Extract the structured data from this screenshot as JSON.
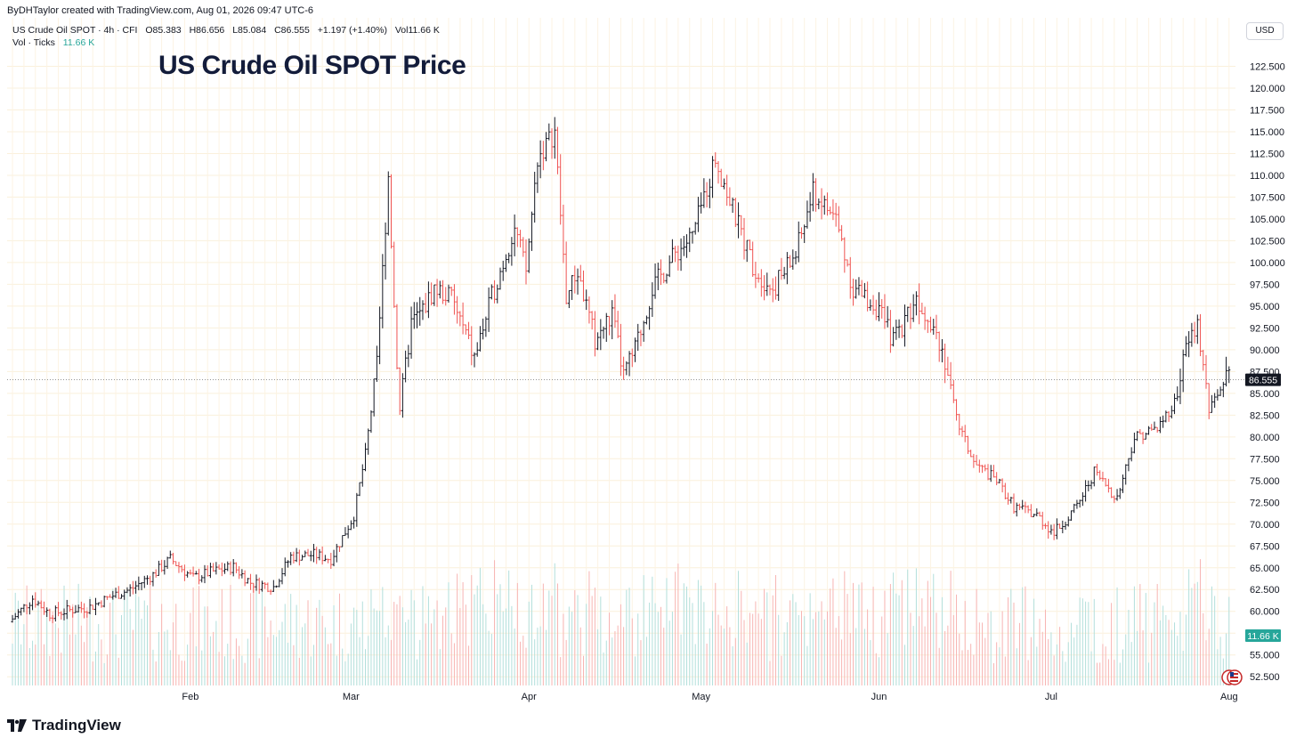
{
  "header": {
    "attribution": "ByDHTaylor created with TradingView.com, Aug 01, 2026 09:47 UTC-6"
  },
  "legend": {
    "symbol": "US Crude Oil SPOT · 4h · CFI",
    "open": "O85.383",
    "high": "H86.656",
    "low": "L85.084",
    "close": "C86.555",
    "change": "+1.197 (+1.40%)",
    "volume": "Vol11.66 K",
    "vol_label": "Vol · Ticks",
    "vol_value": "11.66 K"
  },
  "title": "US Crude Oil SPOT Price",
  "currency": "USD",
  "footer": {
    "brand": "TradingView"
  },
  "colors": {
    "up": "#131722",
    "down": "#ef5350",
    "vol_up": "#b2dfdb",
    "vol_down": "#f7b4b2",
    "last_price_bg": "#131722",
    "vol_label_bg": "#26a69a"
  },
  "chart_data": {
    "type": "line",
    "chart_style": "ohlc-bars",
    "interval": "4h",
    "x_tick_labels": [
      "Feb",
      "Mar",
      "Apr",
      "May",
      "Jun",
      "Jul",
      "Aug"
    ],
    "y_tick_labels": [
      "52.500",
      "55.000",
      "57.500",
      "60.000",
      "62.500",
      "65.000",
      "67.500",
      "70.000",
      "72.500",
      "75.000",
      "77.500",
      "80.000",
      "82.500",
      "85.000",
      "87.500",
      "90.000",
      "92.500",
      "95.000",
      "97.500",
      "100.000",
      "102.500",
      "105.000",
      "107.500",
      "110.000",
      "112.500",
      "115.000",
      "117.500",
      "120.000",
      "122.500"
    ],
    "ylim": [
      51.5,
      125.0
    ],
    "last_price": 86.555,
    "last_price_label": "86.555",
    "volume_label": "11.66 K",
    "grid": true,
    "series": [
      {
        "name": "US Crude Oil SPOT",
        "x": [
          "Jan 1",
          "Jan 5",
          "Jan 8",
          "Jan 12",
          "Jan 15",
          "Jan 19",
          "Jan 22",
          "Jan 26",
          "Jan 29",
          "Feb 2",
          "Feb 5",
          "Feb 9",
          "Feb 12",
          "Feb 16",
          "Feb 19",
          "Feb 23",
          "Feb 26",
          "Mar 2",
          "Mar 4",
          "Mar 6",
          "Mar 8",
          "Mar 9",
          "Mar 10",
          "Mar 12",
          "Mar 14",
          "Mar 16",
          "Mar 19",
          "Mar 23",
          "Mar 26",
          "Mar 30",
          "Apr 1",
          "Apr 3",
          "Apr 6",
          "Apr 8",
          "Apr 10",
          "Apr 13",
          "Apr 16",
          "Apr 18",
          "Apr 20",
          "Apr 23",
          "Apr 27",
          "Apr 30",
          "May 4",
          "May 7",
          "May 11",
          "May 14",
          "May 18",
          "May 21",
          "May 25",
          "May 28",
          "Jun 1",
          "Jun 4",
          "Jun 8",
          "Jun 11",
          "Jun 13",
          "Jun 15",
          "Jun 18",
          "Jun 22",
          "Jun 25",
          "Jun 29",
          "Jul 2",
          "Jul 6",
          "Jul 9",
          "Jul 13",
          "Jul 16",
          "Jul 20",
          "Jul 23",
          "Jul 25",
          "Jul 27",
          "Jul 29",
          "Aug 1"
        ],
        "close": [
          58.8,
          61.5,
          59.7,
          60.2,
          60.5,
          61.8,
          62.5,
          64.2,
          66.0,
          63.8,
          64.5,
          65.1,
          63.3,
          62.8,
          66.3,
          66.5,
          66.0,
          71.0,
          78.0,
          88.0,
          110.0,
          95.0,
          83.0,
          93.0,
          94.5,
          97.0,
          96.0,
          89.0,
          96.0,
          104.0,
          99.0,
          112.0,
          115.0,
          96.0,
          99.0,
          91.0,
          94.0,
          87.0,
          90.0,
          97.0,
          101.0,
          103.0,
          112.0,
          106.0,
          99.0,
          97.0,
          101.0,
          108.0,
          105.0,
          97.0,
          95.0,
          91.0,
          96.0,
          93.0,
          89.0,
          82.0,
          77.0,
          75.0,
          72.0,
          71.0,
          69.0,
          72.0,
          76.0,
          73.0,
          80.0,
          81.0,
          84.0,
          90.0,
          93.0,
          83.0,
          86.555
        ]
      }
    ]
  }
}
